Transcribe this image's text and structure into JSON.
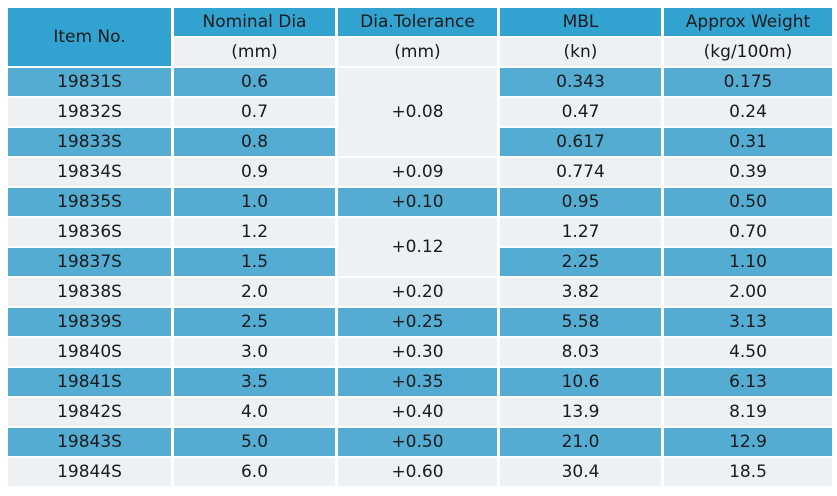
{
  "headers": {
    "item": "Item No.",
    "nominal_dia": "Nominal Dia",
    "dia_tolerance": "Dia.Tolerance",
    "mbl": "MBL",
    "approx_weight": "Approx Weight"
  },
  "units": {
    "nominal_dia": "(mm)",
    "dia_tolerance": "(mm)",
    "mbl": "(kn)",
    "approx_weight": "(kg/100m)"
  },
  "rows": [
    {
      "item": "19831S",
      "dia": "0.6",
      "tol": "+0.08",
      "mbl": "0.343",
      "weight": "0.175"
    },
    {
      "item": "19832S",
      "dia": "0.7",
      "mbl": "0.47",
      "weight": "0.24"
    },
    {
      "item": "19833S",
      "dia": "0.8",
      "mbl": "0.617",
      "weight": "0.31"
    },
    {
      "item": "19834S",
      "dia": "0.9",
      "tol": "+0.09",
      "mbl": "0.774",
      "weight": "0.39"
    },
    {
      "item": "19835S",
      "dia": "1.0",
      "tol": "+0.10",
      "mbl": "0.95",
      "weight": "0.50"
    },
    {
      "item": "19836S",
      "dia": "1.2",
      "tol": "+0.12",
      "mbl": "1.27",
      "weight": "0.70"
    },
    {
      "item": "19837S",
      "dia": "1.5",
      "mbl": "2.25",
      "weight": "1.10"
    },
    {
      "item": "19838S",
      "dia": "2.0",
      "tol": "+0.20",
      "mbl": "3.82",
      "weight": "2.00"
    },
    {
      "item": "19839S",
      "dia": "2.5",
      "tol": "+0.25",
      "mbl": "5.58",
      "weight": "3.13"
    },
    {
      "item": "19840S",
      "dia": "3.0",
      "tol": "+0.30",
      "mbl": "8.03",
      "weight": "4.50"
    },
    {
      "item": "19841S",
      "dia": "3.5",
      "tol": "+0.35",
      "mbl": "10.6",
      "weight": "6.13"
    },
    {
      "item": "19842S",
      "dia": "4.0",
      "tol": "+0.40",
      "mbl": "13.9",
      "weight": "8.19"
    },
    {
      "item": "19843S",
      "dia": "5.0",
      "tol": "+0.50",
      "mbl": "21.0",
      "weight": "12.9"
    },
    {
      "item": "19844S",
      "dia": "6.0",
      "tol": "+0.60",
      "mbl": "30.4",
      "weight": "18.5"
    }
  ],
  "colors": {
    "header_blue": "#32a3d0",
    "row_blue": "#55acd3",
    "row_grey": "#eef1f4"
  }
}
